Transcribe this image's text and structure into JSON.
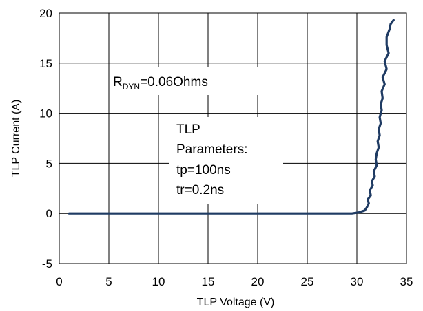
{
  "chart_data": {
    "type": "line",
    "xlabel": "TLP Voltage (V)",
    "ylabel": "TLP Current (A)",
    "xlim": [
      0,
      35
    ],
    "ylim": [
      -5,
      20
    ],
    "x_ticks": [
      "0",
      "5",
      "10",
      "15",
      "20",
      "25",
      "30",
      "35"
    ],
    "y_ticks": [
      "-5",
      "0",
      "5",
      "10",
      "15",
      "20"
    ],
    "grid": true,
    "line_color": "#1f3b63",
    "series": [
      {
        "x": [
          1.0,
          5,
          10,
          15,
          20,
          25,
          29.5,
          30.2,
          30.8,
          31.0,
          31.2,
          31.1,
          31.4,
          31.3,
          31.6,
          31.5,
          31.8,
          31.7,
          32.0,
          31.9,
          32.0,
          32.2,
          32.1,
          32.3,
          32.2,
          32.4,
          32.3,
          32.5,
          32.4,
          32.6,
          32.5,
          32.8,
          32.6,
          33.0,
          32.8,
          33.2,
          33.0,
          33.0,
          33.3,
          33.4,
          33.7
        ],
        "y": [
          0,
          0,
          0,
          0,
          0,
          0,
          0,
          0.1,
          0.3,
          0.6,
          1.0,
          1.4,
          1.8,
          2.3,
          2.8,
          3.2,
          3.7,
          4.2,
          4.8,
          5.4,
          6.0,
          6.6,
          7.2,
          7.8,
          8.4,
          9.0,
          9.6,
          10.3,
          10.9,
          11.5,
          12.2,
          12.9,
          13.6,
          14.4,
          15.2,
          16.0,
          16.8,
          17.6,
          18.4,
          18.9,
          19.3
        ]
      }
    ],
    "annotations": {
      "rdyn_prefix": "R",
      "rdyn_sub": "DYN",
      "rdyn_value": "=0.06Ohms",
      "params_line1": "TLP",
      "params_line2": "Parameters:",
      "params_line3": "tp=100ns",
      "params_line4": "tr=0.2ns"
    }
  }
}
